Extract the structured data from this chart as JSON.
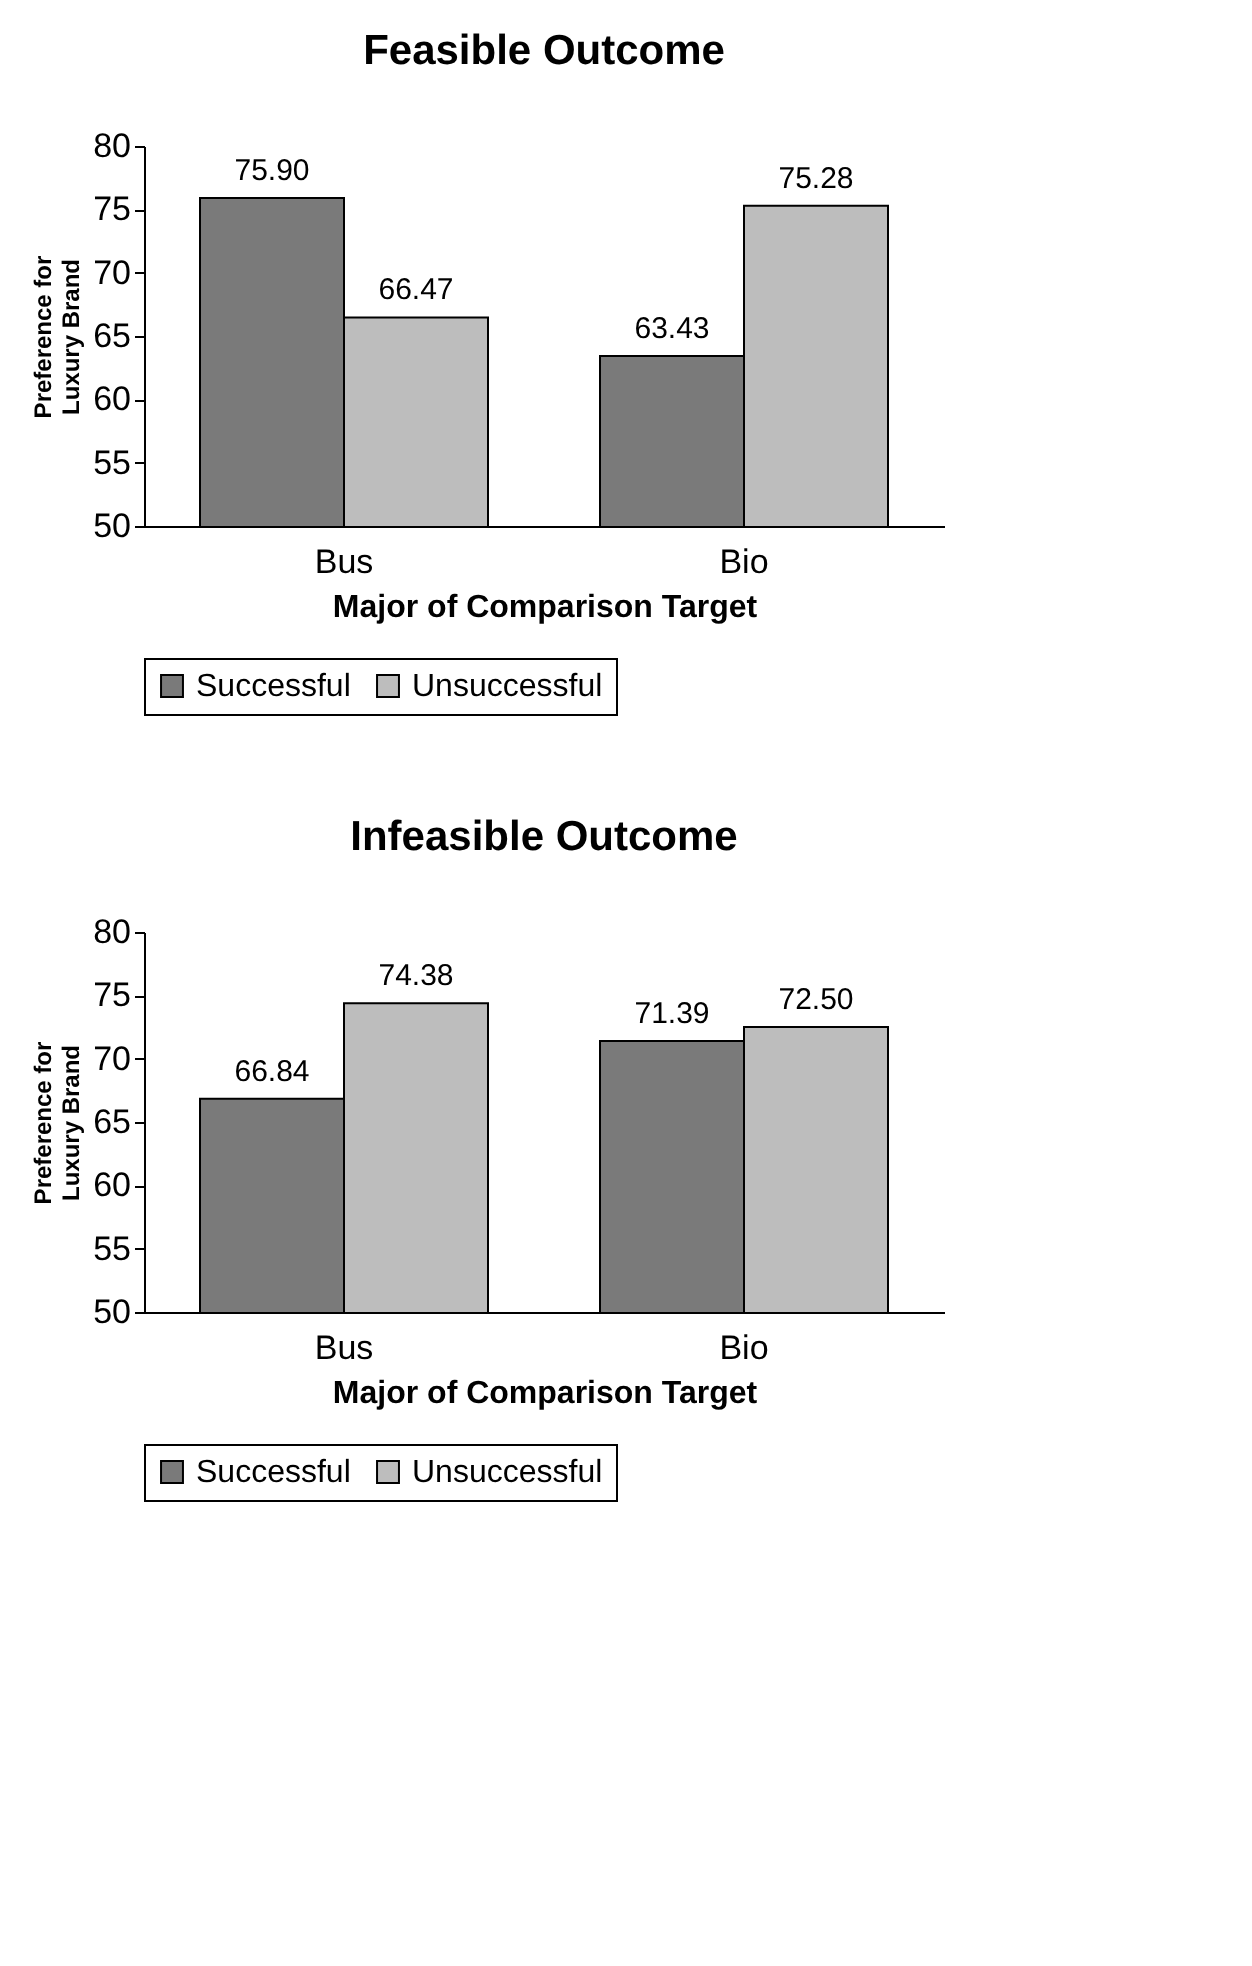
{
  "chart_data": [
    {
      "type": "bar",
      "title": "Feasible Outcome",
      "xlabel": "Major of Comparison Target",
      "ylabel": "Preference for Luxury Brand",
      "categories": [
        "Bus",
        "Bio"
      ],
      "series": [
        {
          "name": "Successful",
          "color": "#7a7a7a",
          "values": [
            75.9,
            63.43
          ],
          "value_labels": [
            "75.90",
            "63.43"
          ]
        },
        {
          "name": "Unsuccessful",
          "color": "#bdbdbd",
          "values": [
            66.47,
            75.28
          ],
          "value_labels": [
            "66.47",
            "75.28"
          ]
        }
      ],
      "ylim": [
        50,
        80
      ],
      "yticks": [
        50,
        55,
        60,
        65,
        70,
        75,
        80
      ],
      "legend": "bottom",
      "grid": false
    },
    {
      "type": "bar",
      "title": "Infeasible Outcome",
      "xlabel": "Major of Comparison Target",
      "ylabel": "Preference for Luxury Brand",
      "categories": [
        "Bus",
        "Bio"
      ],
      "series": [
        {
          "name": "Successful",
          "color": "#7a7a7a",
          "values": [
            66.84,
            71.39
          ],
          "value_labels": [
            "66.84",
            "71.39"
          ]
        },
        {
          "name": "Unsuccessful",
          "color": "#bdbdbd",
          "values": [
            74.38,
            72.5
          ],
          "value_labels": [
            "74.38",
            "72.50"
          ]
        }
      ],
      "ylim": [
        50,
        80
      ],
      "yticks": [
        50,
        55,
        60,
        65,
        70,
        75,
        80
      ],
      "legend": "bottom",
      "grid": false
    }
  ]
}
